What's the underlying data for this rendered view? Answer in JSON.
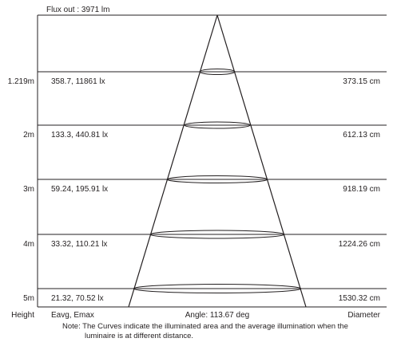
{
  "flux_label": "Flux out : 3971 lm",
  "rows": [
    {
      "height": "1.219m",
      "illumination": "358.7, 11861 lx",
      "diameter": "373.15 cm"
    },
    {
      "height": "2m",
      "illumination": "133.3, 440.81 lx",
      "diameter": "612.13 cm"
    },
    {
      "height": "3m",
      "illumination": "59.24, 195.91 lx",
      "diameter": "918.19 cm"
    },
    {
      "height": "4m",
      "illumination": "33.32, 110.21 lx",
      "diameter": "1224.26 cm"
    },
    {
      "height": "5m",
      "illumination": "21.32, 70.52 lx",
      "diameter": "1530.32 cm"
    }
  ],
  "footer": {
    "height_label": "Height",
    "illumination_label": "Eavg, Emax",
    "angle_label": "Angle: 113.67 deg",
    "diameter_label": "Diameter"
  },
  "note": {
    "line1": "Note: The Curves indicate the illuminated area and the average illumination when the",
    "line2": "luminaire is at different distance."
  }
}
